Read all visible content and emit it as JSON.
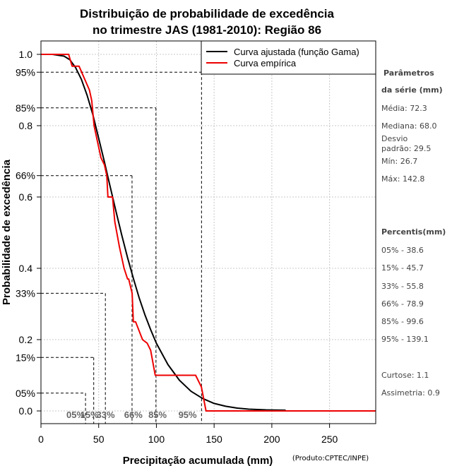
{
  "chart_data": {
    "type": "line",
    "title_line1": "Distribuição de probabilidade de excedência",
    "title_line2": "no trimestre JAS (1981-2010): Região 86",
    "xlabel": "Precipitação acumulada (mm)",
    "ylabel": "Probabilidade de excedência",
    "credit": "(Produto:CPTEC/INPE)",
    "xlim": [
      0,
      290
    ],
    "ylim": [
      0.0,
      1.0
    ],
    "xticks": [
      0,
      50,
      100,
      150,
      200,
      250
    ],
    "yticks": [
      0.0,
      0.2,
      0.4,
      0.6,
      0.8,
      1.0
    ],
    "ytick_labels": [
      "0.0",
      "0.2",
      "0.4",
      "0.6",
      "0.8",
      "1.0"
    ],
    "grid": true,
    "legend": {
      "position": "top-right",
      "entries": [
        {
          "label": "Curva ajustada (função Gama)",
          "color": "#000000"
        },
        {
          "label": "Curva empírica",
          "color": "#ee0000"
        }
      ]
    },
    "series": [
      {
        "name": "Curva ajustada (função Gama)",
        "color": "#000000",
        "x": [
          0,
          10,
          20,
          25,
          30,
          35,
          40,
          45,
          50,
          55,
          60,
          65,
          70,
          75,
          80,
          85,
          90,
          95,
          100,
          110,
          120,
          130,
          140,
          150,
          160,
          170,
          180,
          195,
          212
        ],
        "y": [
          1.0,
          1.0,
          0.995,
          0.985,
          0.963,
          0.93,
          0.885,
          0.83,
          0.765,
          0.698,
          0.628,
          0.56,
          0.493,
          0.43,
          0.372,
          0.318,
          0.27,
          0.228,
          0.19,
          0.13,
          0.086,
          0.055,
          0.035,
          0.021,
          0.013,
          0.008,
          0.005,
          0.003,
          0.002
        ]
      },
      {
        "name": "Curva empírica",
        "color": "#ee0000",
        "x": [
          0,
          24,
          27,
          33,
          42,
          44,
          46,
          50,
          52,
          55,
          57,
          58,
          62,
          64,
          68,
          72,
          75,
          76,
          79,
          80,
          82,
          88,
          92,
          95,
          99,
          103,
          134,
          139,
          143,
          290
        ],
        "y": [
          1.0,
          1.0,
          0.967,
          0.967,
          0.9,
          0.87,
          0.8,
          0.74,
          0.71,
          0.69,
          0.66,
          0.6,
          0.6,
          0.53,
          0.46,
          0.4,
          0.37,
          0.37,
          0.33,
          0.25,
          0.25,
          0.2,
          0.19,
          0.17,
          0.1,
          0.1,
          0.1,
          0.067,
          0.0,
          0.0
        ]
      }
    ],
    "reference_lines": [
      {
        "label": "05%",
        "x": 38.6,
        "y": 0.05
      },
      {
        "label": "15%",
        "x": 45.7,
        "y": 0.15
      },
      {
        "label": "33%",
        "x": 55.8,
        "y": 0.33
      },
      {
        "label": "66%",
        "x": 78.9,
        "y": 0.66
      },
      {
        "label": "85%",
        "x": 99.6,
        "y": 0.85
      },
      {
        "label": "95%",
        "x": 139.1,
        "y": 0.95
      }
    ],
    "x_ref_labels": [
      {
        "label": "05%",
        "x": 30
      },
      {
        "label": "15%",
        "x": 42
      },
      {
        "label": "33%",
        "x": 56
      },
      {
        "label": "66%",
        "x": 80
      },
      {
        "label": "85%",
        "x": 101
      },
      {
        "label": "95%",
        "x": 127
      }
    ],
    "y_pct_labels": [
      {
        "label": "95%",
        "y": 0.95
      },
      {
        "label": "85%",
        "y": 0.85
      },
      {
        "label": "66%",
        "y": 0.66
      },
      {
        "label": "33%",
        "y": 0.33
      },
      {
        "label": "15%",
        "y": 0.15
      },
      {
        "label": "05%",
        "y": 0.05
      }
    ]
  },
  "side_panel": {
    "params_head_1": "Parâmetros",
    "params_head_2": "da série (mm)",
    "media": "Média: 72.3",
    "mediana": "Mediana: 68.0",
    "desvio_1": "Desvio",
    "desvio_2": "padrão: 29.5",
    "min": "Mín: 26.7",
    "max": "Máx: 142.8",
    "percentis_head": "Percentis(mm)",
    "p05": "05% - 38.6",
    "p15": "15% - 45.7",
    "p33": "33% - 55.8",
    "p66": "66% - 78.9",
    "p85": "85% - 99.6",
    "p95": "95% - 139.1",
    "curtose": "Curtose: 1.1",
    "assimetria": "Assimetria: 0.9"
  }
}
